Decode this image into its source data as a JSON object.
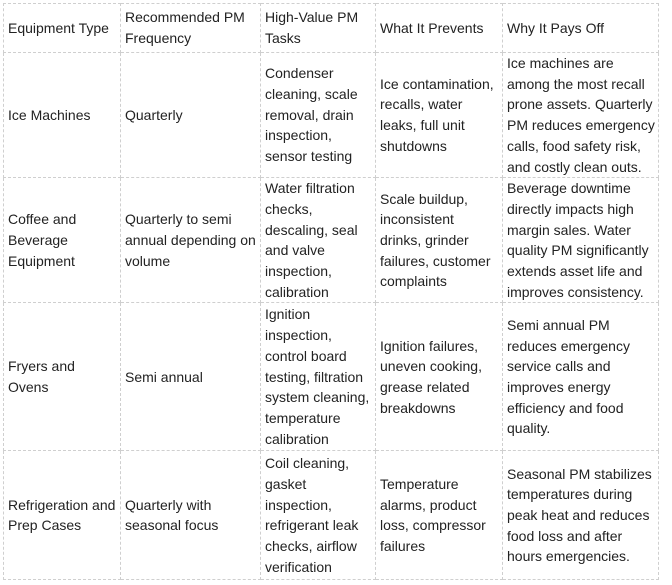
{
  "table": {
    "header": [
      "Equipment Type",
      "Recommended PM Frequency",
      "High-Value PM Tasks",
      "What It Prevents",
      "Why It Pays Off"
    ],
    "rows": [
      [
        "Ice Machines",
        "Quarterly",
        "Condenser cleaning, scale removal, drain inspection, sensor testing",
        "Ice contamination, recalls, water leaks, full unit shutdowns",
        "Ice machines are among the most recall prone assets. Quarterly PM reduces emergency calls, food safety risk, and costly clean outs."
      ],
      [
        "Coffee and Beverage Equipment",
        "Quarterly to semi annual depending on volume",
        "Water filtration checks, descaling, seal and valve inspection, calibration",
        "Scale buildup, inconsistent drinks, grinder failures, customer complaints",
        "Beverage downtime directly impacts high margin sales. Water quality PM significantly extends asset life and improves consistency."
      ],
      [
        "Fryers and Ovens",
        "Semi annual",
        "Ignition inspection, control board testing, filtration system cleaning, temperature calibration",
        "Ignition failures, uneven cooking, grease related breakdowns",
        "Semi annual PM reduces emergency service calls and improves energy efficiency and food quality."
      ],
      [
        "Refrigeration and Prep Cases",
        "Quarterly with seasonal focus",
        "Coil cleaning, gasket inspection, refrigerant leak checks, airflow verification",
        "Temperature alarms, product loss, compressor failures",
        "Seasonal PM stabilizes temperatures during peak heat and reduces food loss and after hours emergencies."
      ]
    ]
  }
}
